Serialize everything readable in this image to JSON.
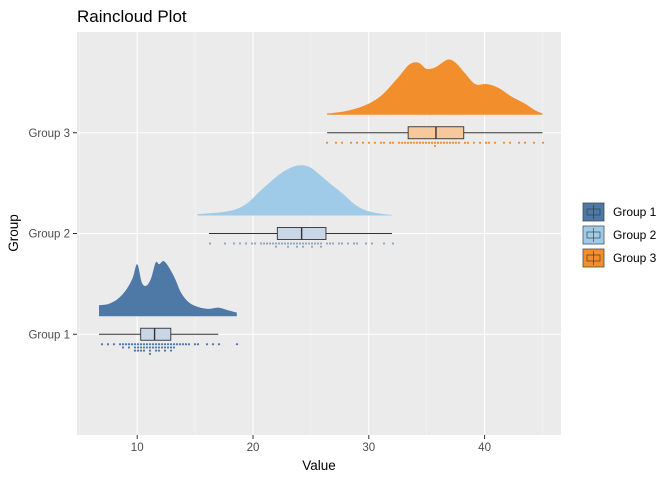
{
  "chart_data": {
    "type": "raincloud",
    "title": "Raincloud Plot",
    "xlabel": "Value",
    "ylabel": "Group",
    "xlim": [
      4.8,
      46.6
    ],
    "x_ticks": [
      10,
      20,
      30,
      40
    ],
    "x_tick_labels": [
      "10",
      "20",
      "30",
      "40"
    ],
    "grid": true,
    "legend": "right",
    "colors": {
      "panel_bg": "#ebebeb",
      "grid": "#ffffff",
      "box_fill": "#c8d6e5"
    },
    "groups": [
      {
        "name": "Group 1",
        "color": "#4e79a7",
        "range": [
          6.7,
          18.6
        ],
        "box": {
          "min": 6.7,
          "q1": 10.3,
          "median": 11.5,
          "q3": 12.9,
          "max": 17.0
        },
        "density": [
          [
            6.7,
            0.18
          ],
          [
            7.5,
            0.2
          ],
          [
            8.3,
            0.28
          ],
          [
            9.0,
            0.42
          ],
          [
            9.6,
            0.62
          ],
          [
            10.0,
            0.85
          ],
          [
            10.4,
            0.55
          ],
          [
            10.8,
            0.5
          ],
          [
            11.2,
            0.62
          ],
          [
            11.6,
            0.88
          ],
          [
            11.9,
            0.85
          ],
          [
            12.3,
            0.9
          ],
          [
            12.8,
            0.78
          ],
          [
            13.3,
            0.6
          ],
          [
            13.8,
            0.38
          ],
          [
            14.5,
            0.22
          ],
          [
            15.3,
            0.15
          ],
          [
            16.2,
            0.12
          ],
          [
            17.0,
            0.14
          ],
          [
            17.8,
            0.1
          ],
          [
            18.6,
            0.06
          ]
        ],
        "points": [
          6.9,
          7.6,
          8.1,
          8.4,
          8.7,
          8.9,
          9.1,
          9.3,
          9.4,
          9.6,
          9.7,
          9.8,
          9.9,
          10.0,
          10.1,
          10.1,
          10.2,
          10.3,
          10.4,
          10.5,
          10.6,
          10.7,
          10.8,
          10.9,
          11.0,
          11.1,
          11.1,
          11.2,
          11.3,
          11.4,
          11.5,
          11.6,
          11.7,
          11.8,
          11.9,
          12.0,
          12.1,
          12.2,
          12.3,
          12.4,
          12.5,
          12.6,
          12.7,
          12.8,
          12.9,
          13.0,
          13.1,
          13.3,
          13.5,
          13.7,
          13.9,
          14.2,
          14.5,
          14.9,
          15.3,
          15.9,
          16.5,
          17.0,
          18.6
        ]
      },
      {
        "name": "Group 2",
        "color": "#a0cbe8",
        "range": [
          15.2,
          32.0
        ],
        "box": {
          "min": 16.2,
          "q1": 22.1,
          "median": 24.2,
          "q3": 26.3,
          "max": 32.0
        },
        "density": [
          [
            15.2,
            0.02
          ],
          [
            16.5,
            0.04
          ],
          [
            17.5,
            0.06
          ],
          [
            18.5,
            0.1
          ],
          [
            19.5,
            0.2
          ],
          [
            20.5,
            0.38
          ],
          [
            21.5,
            0.55
          ],
          [
            22.5,
            0.7
          ],
          [
            23.5,
            0.8
          ],
          [
            24.3,
            0.82
          ],
          [
            25.0,
            0.78
          ],
          [
            25.8,
            0.66
          ],
          [
            26.8,
            0.5
          ],
          [
            27.8,
            0.35
          ],
          [
            28.8,
            0.18
          ],
          [
            29.8,
            0.08
          ],
          [
            31.0,
            0.03
          ],
          [
            32.0,
            0.01
          ]
        ],
        "points": [
          16.2,
          17.5,
          18.4,
          19.0,
          19.5,
          19.9,
          20.3,
          20.6,
          20.9,
          21.2,
          21.5,
          21.7,
          21.9,
          22.1,
          22.3,
          22.5,
          22.7,
          22.9,
          23.1,
          23.3,
          23.5,
          23.7,
          23.9,
          24.1,
          24.2,
          24.4,
          24.6,
          24.8,
          25.0,
          25.2,
          25.4,
          25.6,
          25.8,
          26.0,
          26.3,
          26.6,
          26.9,
          27.3,
          27.7,
          28.1,
          28.6,
          29.1,
          29.7,
          30.4,
          31.2,
          32.0
        ]
      },
      {
        "name": "Group 3",
        "color": "#f28e2b",
        "range": [
          26.4,
          45.0
        ],
        "box": {
          "min": 26.4,
          "q1": 33.4,
          "median": 35.8,
          "q3": 38.2,
          "max": 45.0
        },
        "density": [
          [
            26.4,
            0.02
          ],
          [
            28.0,
            0.06
          ],
          [
            29.5,
            0.14
          ],
          [
            31.0,
            0.3
          ],
          [
            32.5,
            0.6
          ],
          [
            33.5,
            0.82
          ],
          [
            34.3,
            0.85
          ],
          [
            35.0,
            0.75
          ],
          [
            35.8,
            0.78
          ],
          [
            36.8,
            0.9
          ],
          [
            37.5,
            0.85
          ],
          [
            38.3,
            0.68
          ],
          [
            39.2,
            0.5
          ],
          [
            40.2,
            0.5
          ],
          [
            41.2,
            0.44
          ],
          [
            42.3,
            0.3
          ],
          [
            43.5,
            0.18
          ],
          [
            44.3,
            0.08
          ],
          [
            45.0,
            0.02
          ]
        ],
        "points": [
          26.4,
          27.2,
          27.8,
          28.5,
          29.1,
          29.6,
          30.1,
          30.6,
          31.0,
          31.4,
          31.8,
          32.2,
          32.5,
          32.8,
          33.1,
          33.4,
          33.6,
          33.9,
          34.1,
          34.4,
          34.7,
          34.9,
          35.2,
          35.4,
          35.6,
          35.8,
          36.0,
          36.2,
          36.5,
          36.7,
          37.0,
          37.2,
          37.5,
          37.8,
          38.2,
          38.6,
          39.0,
          39.5,
          40.0,
          40.5,
          41.0,
          41.6,
          42.2,
          42.9,
          43.6,
          44.3,
          45.0
        ]
      }
    ]
  }
}
